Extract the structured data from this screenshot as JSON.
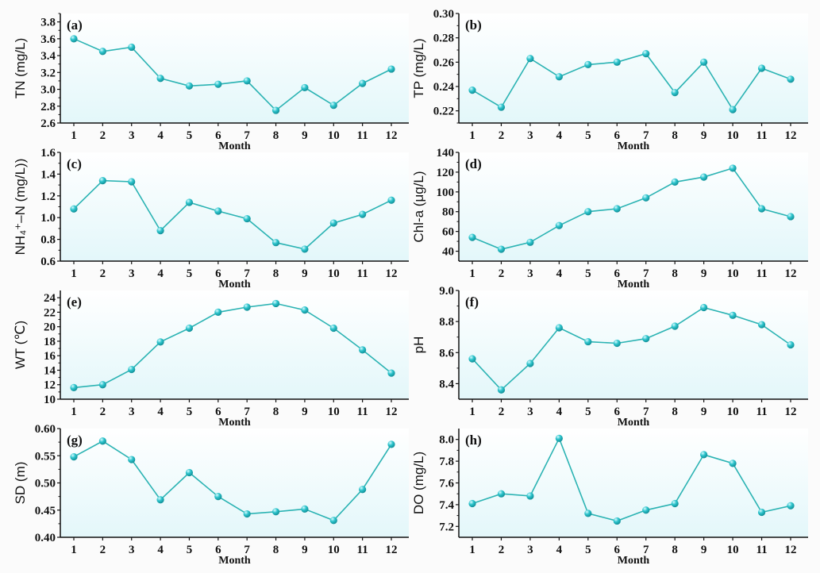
{
  "colors": {
    "line": "#2bb3b3",
    "marker": "#1fb8c0",
    "fill_top": "#ffffff",
    "fill_bottom": "#e3f7fa",
    "axis": "#111111"
  },
  "chart_data": [
    {
      "type": "line",
      "panel": "(a)",
      "ylabel": "TN (mg/L)",
      "xlabel": "Month",
      "x": [
        1,
        2,
        3,
        4,
        5,
        6,
        7,
        8,
        9,
        10,
        11,
        12
      ],
      "values": [
        3.6,
        3.45,
        3.5,
        3.13,
        3.04,
        3.06,
        3.1,
        2.75,
        3.02,
        2.81,
        3.07,
        3.24
      ],
      "ylim": [
        2.6,
        3.9
      ],
      "ytick_labels": [
        "2.6",
        "2.8",
        "3.0",
        "3.2",
        "3.4",
        "3.6",
        "3.8"
      ]
    },
    {
      "type": "line",
      "panel": "(b)",
      "ylabel": "TP (mg/L)",
      "xlabel": "Month",
      "x": [
        1,
        2,
        3,
        4,
        5,
        6,
        7,
        8,
        9,
        10,
        11,
        12
      ],
      "values": [
        0.237,
        0.223,
        0.263,
        0.248,
        0.258,
        0.26,
        0.267,
        0.235,
        0.26,
        0.221,
        0.255,
        0.246
      ],
      "ylim": [
        0.21,
        0.3
      ],
      "ytick_labels": [
        "0.22",
        "0.24",
        "0.26",
        "0.28",
        "0.30"
      ]
    },
    {
      "type": "line",
      "panel": "(c)",
      "ylabel": "NH₄⁺–N (mg/L))",
      "xlabel": "Month",
      "x": [
        1,
        2,
        3,
        4,
        5,
        6,
        7,
        8,
        9,
        10,
        11,
        12
      ],
      "values": [
        1.08,
        1.34,
        1.33,
        0.88,
        1.14,
        1.06,
        0.99,
        0.77,
        0.71,
        0.95,
        1.03,
        1.16
      ],
      "ylim": [
        0.6,
        1.6
      ],
      "ytick_labels": [
        "0.6",
        "0.8",
        "1.0",
        "1.2",
        "1.4",
        "1.6"
      ]
    },
    {
      "type": "line",
      "panel": "(d)",
      "ylabel": "Chl-a (μg/L)",
      "xlabel": "Month",
      "x": [
        1,
        2,
        3,
        4,
        5,
        6,
        7,
        8,
        9,
        10,
        11,
        12
      ],
      "values": [
        54,
        42,
        49,
        66,
        80,
        83,
        94,
        110,
        115,
        124,
        83,
        75
      ],
      "ylim": [
        30,
        140
      ],
      "ytick_labels": [
        "40",
        "60",
        "80",
        "100",
        "120",
        "140"
      ]
    },
    {
      "type": "line",
      "panel": "(e)",
      "ylabel": "WT (℃)",
      "xlabel": "Month",
      "x": [
        1,
        2,
        3,
        4,
        5,
        6,
        7,
        8,
        9,
        10,
        11,
        12
      ],
      "values": [
        11.6,
        12.0,
        14.1,
        17.9,
        19.8,
        22.0,
        22.7,
        23.2,
        22.3,
        19.8,
        16.8,
        13.6
      ],
      "ylim": [
        10,
        25
      ],
      "ytick_labels": [
        "10",
        "12",
        "14",
        "16",
        "18",
        "20",
        "22",
        "24"
      ]
    },
    {
      "type": "line",
      "panel": "(f)",
      "ylabel": "pH",
      "xlabel": "Month",
      "x": [
        1,
        2,
        3,
        4,
        5,
        6,
        7,
        8,
        9,
        10,
        11,
        12
      ],
      "values": [
        8.56,
        8.36,
        8.53,
        8.76,
        8.67,
        8.66,
        8.69,
        8.77,
        8.89,
        8.84,
        8.78,
        8.65
      ],
      "ylim": [
        8.3,
        9.0
      ],
      "ytick_labels": [
        "8.4",
        "8.6",
        "8.8",
        "9.0"
      ]
    },
    {
      "type": "line",
      "panel": "(g)",
      "ylabel": "SD (m)",
      "xlabel": "Month",
      "x": [
        1,
        2,
        3,
        4,
        5,
        6,
        7,
        8,
        9,
        10,
        11,
        12
      ],
      "values": [
        0.548,
        0.577,
        0.543,
        0.469,
        0.519,
        0.475,
        0.443,
        0.447,
        0.452,
        0.431,
        0.488,
        0.571
      ],
      "ylim": [
        0.4,
        0.6
      ],
      "ytick_labels": [
        "0.40",
        "0.45",
        "0.50",
        "0.55",
        "0.60"
      ]
    },
    {
      "type": "line",
      "panel": "(h)",
      "ylabel": "DO (mg/L)",
      "xlabel": "Month",
      "x": [
        1,
        2,
        3,
        4,
        5,
        6,
        7,
        8,
        9,
        10,
        11,
        12
      ],
      "values": [
        7.41,
        7.5,
        7.48,
        8.01,
        7.32,
        7.25,
        7.35,
        7.41,
        7.86,
        7.78,
        7.33,
        7.39
      ],
      "ylim": [
        7.1,
        8.1
      ],
      "ytick_labels": [
        "7.2",
        "7.4",
        "7.6",
        "7.8",
        "8.0"
      ]
    }
  ]
}
